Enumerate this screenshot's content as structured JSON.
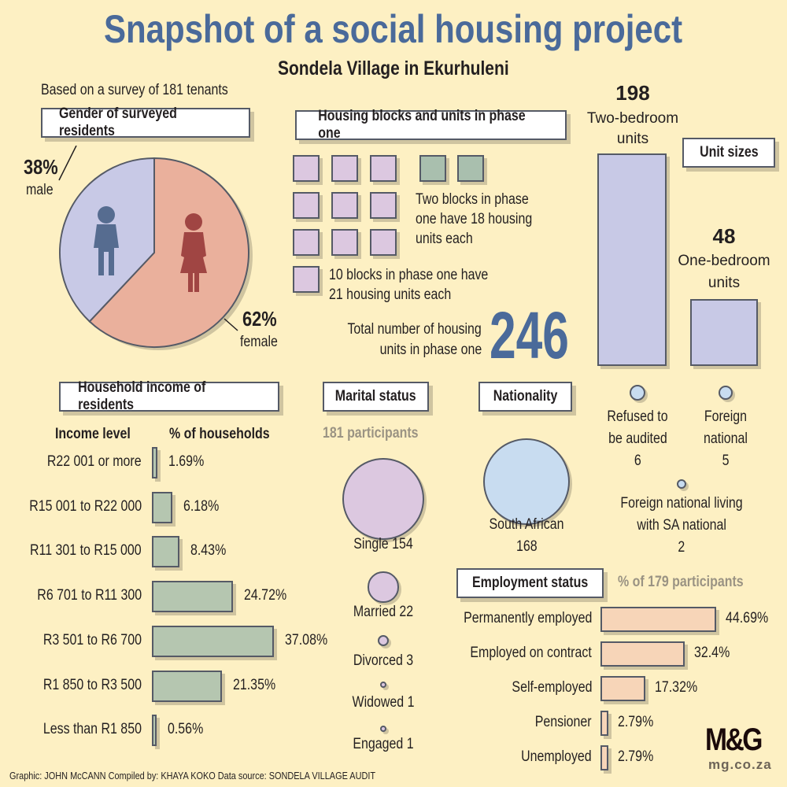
{
  "header": {
    "title": "Snapshot of a social housing project",
    "subtitle": "Sondela Village in Ekurhuleni",
    "survey_note": "Based on a survey of 181 tenants"
  },
  "colors": {
    "title": "#4a6a9a",
    "male": "#c8c9e6",
    "female": "#eab09c",
    "male_icon": "#566c90",
    "female_icon": "#a04543",
    "income_bar": "#b5c6b0",
    "employment_bar": "#f7d5b8",
    "nationality": "#c8dcf0",
    "marital": "#dcc8e0"
  },
  "gender": {
    "title": "Gender of surveyed residents",
    "male_pct": "38%",
    "male_label": "male",
    "female_pct": "62%",
    "female_label": "female"
  },
  "housing": {
    "title": "Housing blocks and units in phase one",
    "two_blocks_lines": [
      "Two blocks in phase",
      "one have 18 housing",
      "units each"
    ],
    "ten_blocks_lines": [
      "10 blocks in phase one have",
      "21 housing units each"
    ],
    "total_lines": [
      "Total number of housing",
      "units in phase one"
    ],
    "total": "246"
  },
  "unit_sizes": {
    "title": "Unit sizes",
    "two_bed_count": "198",
    "two_bed_lines": [
      "Two-bedroom",
      "units"
    ],
    "one_bed_count": "48",
    "one_bed_lines": [
      "One-bedroom",
      "units"
    ]
  },
  "footer": {
    "credits": "Graphic: JOHN McCANN  Compiled by: KHAYA KOKO  Data source: SONDELA VILLAGE AUDIT",
    "logo": "M&G",
    "site": "mg.co.za"
  },
  "chart_data": [
    {
      "id": "gender",
      "type": "pie",
      "title": "Gender of surveyed residents",
      "categories": [
        "male",
        "female"
      ],
      "values": [
        38,
        62
      ]
    },
    {
      "id": "unit_sizes",
      "type": "bar",
      "title": "Unit sizes",
      "categories": [
        "Two-bedroom units",
        "One-bedroom units"
      ],
      "values": [
        198,
        48
      ]
    },
    {
      "id": "income",
      "type": "bar",
      "title": "Household income of residents",
      "xlabel": "Income level",
      "ylabel": "% of households",
      "categories": [
        "R22 001 or more",
        "R15 001 to R22 000",
        "R11 301 to R15 000",
        "R6 701 to R11 300",
        "R3 501 to R6 700",
        "R1 850 to R3 500",
        "Less than R1 850"
      ],
      "values": [
        1.69,
        6.18,
        8.43,
        24.72,
        37.08,
        21.35,
        0.56
      ],
      "labels": [
        "1.69%",
        "6.18%",
        "8.43%",
        "24.72%",
        "37.08%",
        "21.35%",
        "0.56%"
      ]
    },
    {
      "id": "marital",
      "type": "bubble",
      "title": "Marital status",
      "subtitle": "181 participants",
      "categories": [
        "Single",
        "Married",
        "Divorced",
        "Widowed",
        "Engaged"
      ],
      "values": [
        154,
        22,
        3,
        1,
        1
      ],
      "labels": [
        "Single 154",
        "Married 22",
        "Divorced 3",
        "Widowed 1",
        "Engaged 1"
      ]
    },
    {
      "id": "nationality",
      "type": "bubble",
      "title": "Nationality",
      "categories": [
        "South African",
        "Refused to be audited",
        "Foreign national",
        "Foreign national living with SA national"
      ],
      "values": [
        168,
        6,
        5,
        2
      ],
      "labels": [
        [
          "South African",
          "168"
        ],
        [
          "Refused to",
          "be audited",
          "6"
        ],
        [
          "Foreign",
          "national",
          "5"
        ],
        [
          "Foreign national living",
          "with SA national",
          "2"
        ]
      ]
    },
    {
      "id": "employment",
      "type": "bar",
      "title": "Employment status",
      "subtitle": "% of 179 participants",
      "categories": [
        "Permanently employed",
        "Employed on contract",
        "Self-employed",
        "Pensioner",
        "Unemployed"
      ],
      "values": [
        44.69,
        32.4,
        17.32,
        2.79,
        2.79
      ],
      "labels": [
        "44.69%",
        "32.4%",
        "17.32%",
        "2.79%",
        "2.79%"
      ]
    }
  ]
}
